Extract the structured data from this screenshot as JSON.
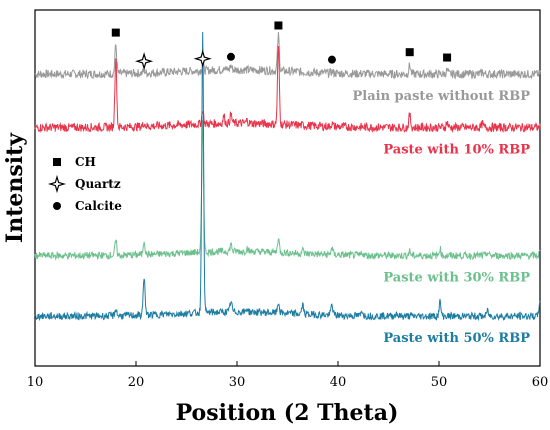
{
  "chart_data": {
    "type": "line",
    "xlabel": "Position (2 Theta)",
    "ylabel": "Intensity",
    "xlim": [
      10,
      60
    ],
    "xticks": [
      10,
      20,
      30,
      40,
      50,
      60
    ],
    "y_ticks_shown": false,
    "grid": false,
    "series": [
      {
        "name": "Plain paste without RBP",
        "color": "#999999",
        "baseline": 0.82,
        "noise": 0.012,
        "peaks": [
          [
            18.0,
            0.08
          ],
          [
            20.8,
            0.008
          ],
          [
            26.6,
            0.015
          ],
          [
            28.7,
            0.01
          ],
          [
            29.4,
            0.012
          ],
          [
            34.1,
            0.1
          ],
          [
            39.4,
            0.004
          ],
          [
            47.1,
            0.025
          ],
          [
            50.8,
            0.01
          ],
          [
            54.3,
            0.006
          ]
        ]
      },
      {
        "name": "Paste with 10% RBP",
        "color": "#e8334a",
        "baseline": 0.67,
        "noise": 0.012,
        "peaks": [
          [
            18.0,
            0.2
          ],
          [
            20.8,
            0.01
          ],
          [
            26.6,
            0.04
          ],
          [
            28.7,
            0.02
          ],
          [
            29.4,
            0.025
          ],
          [
            31.0,
            0.008
          ],
          [
            34.1,
            0.22
          ],
          [
            39.4,
            0.008
          ],
          [
            47.1,
            0.035
          ],
          [
            50.8,
            0.015
          ],
          [
            54.3,
            0.01
          ]
        ]
      },
      {
        "name": "Paste with 30% RBP",
        "color": "#6cc08e",
        "baseline": 0.31,
        "noise": 0.01,
        "peaks": [
          [
            18.0,
            0.04
          ],
          [
            20.8,
            0.04
          ],
          [
            26.6,
            0.37
          ],
          [
            29.4,
            0.02
          ],
          [
            31.0,
            0.01
          ],
          [
            34.1,
            0.04
          ],
          [
            36.5,
            0.01
          ],
          [
            39.4,
            0.02
          ],
          [
            42.4,
            0.008
          ],
          [
            47.1,
            0.012
          ],
          [
            50.1,
            0.02
          ],
          [
            54.8,
            0.008
          ],
          [
            60.0,
            0.01
          ]
        ]
      },
      {
        "name": "Paste with 50% RBP",
        "color": "#1c7ca2",
        "baseline": 0.14,
        "noise": 0.01,
        "peaks": [
          [
            18.0,
            0.02
          ],
          [
            20.8,
            0.11
          ],
          [
            26.6,
            0.78
          ],
          [
            29.4,
            0.03
          ],
          [
            31.0,
            0.01
          ],
          [
            34.1,
            0.03
          ],
          [
            36.5,
            0.025
          ],
          [
            39.4,
            0.03
          ],
          [
            42.4,
            0.015
          ],
          [
            45.8,
            0.01
          ],
          [
            50.1,
            0.04
          ],
          [
            54.8,
            0.015
          ],
          [
            60.0,
            0.05
          ]
        ]
      }
    ],
    "markers": [
      {
        "type": "CH",
        "symbol": "square",
        "x": 18.0
      },
      {
        "type": "Quartz",
        "symbol": "star",
        "x": 20.8
      },
      {
        "type": "Quartz",
        "symbol": "star",
        "x": 26.6
      },
      {
        "type": "Calcite",
        "symbol": "circle",
        "x": 29.4
      },
      {
        "type": "CH",
        "symbol": "square",
        "x": 34.1
      },
      {
        "type": "Calcite",
        "symbol": "circle",
        "x": 39.4
      },
      {
        "type": "CH",
        "symbol": "square",
        "x": 47.1
      },
      {
        "type": "CH",
        "symbol": "square",
        "x": 50.8
      }
    ],
    "legend": [
      {
        "label": "CH",
        "symbol": "square"
      },
      {
        "label": "Quartz",
        "symbol": "star"
      },
      {
        "label": "Calcite",
        "symbol": "circle"
      }
    ],
    "legend_position": "left-middle"
  }
}
